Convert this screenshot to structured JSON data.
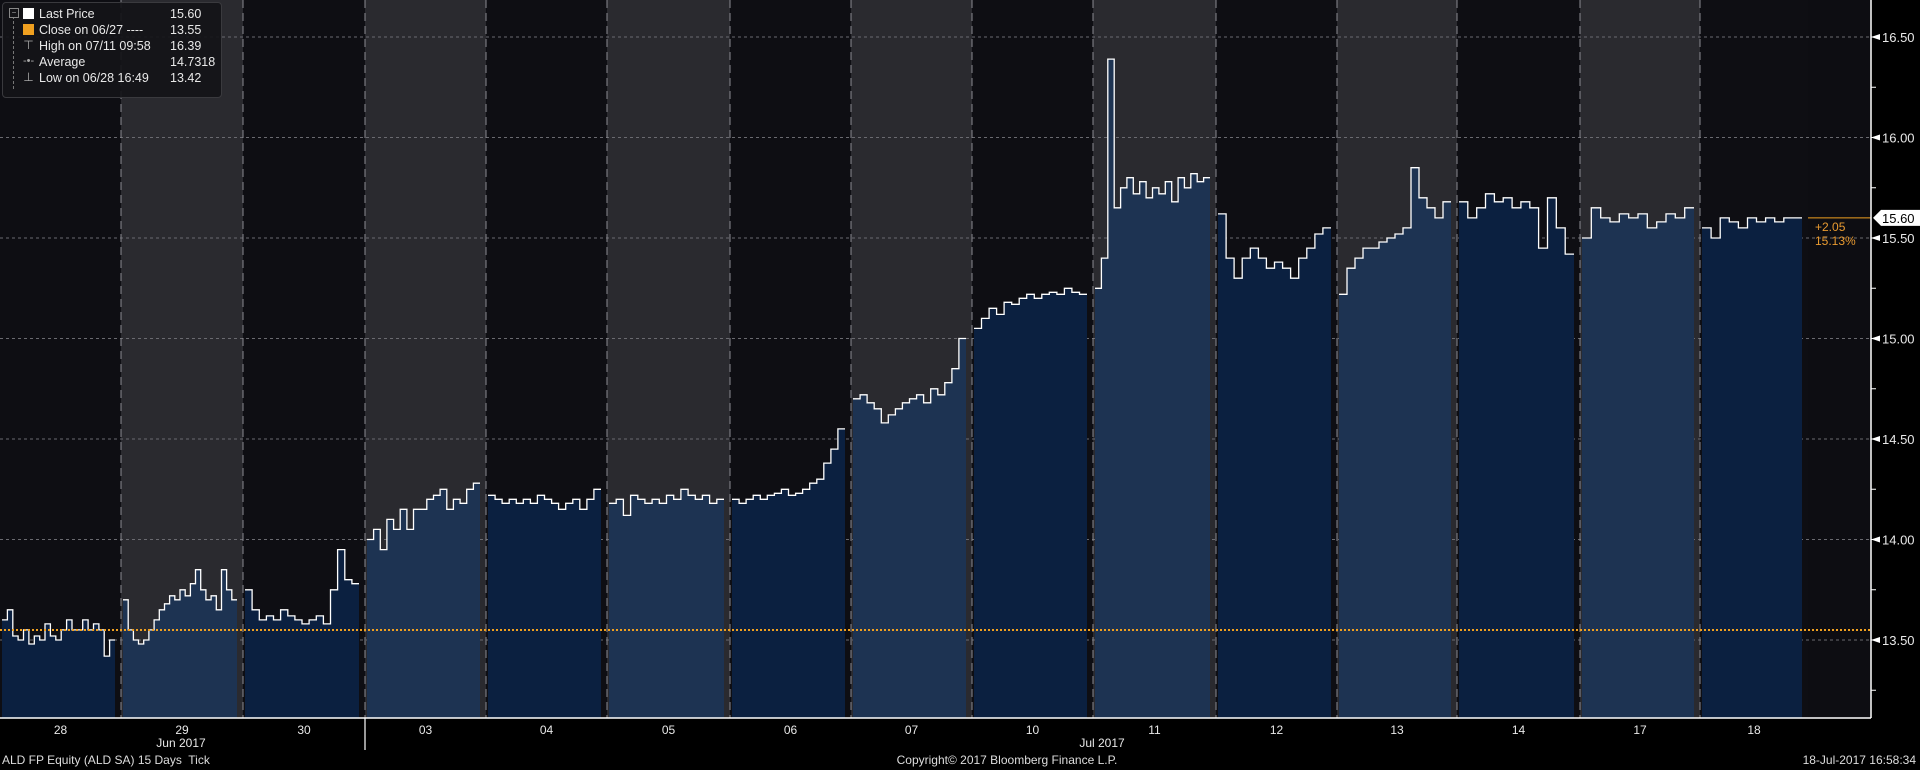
{
  "legend": {
    "items": [
      {
        "label": "Last Price",
        "value": "15.60",
        "symbol": "white-square"
      },
      {
        "label": "Close on 06/27 ----",
        "value": "13.55",
        "symbol": "orange-square"
      },
      {
        "label": "High on 07/11 09:58",
        "value": "16.39",
        "symbol": "high-marker"
      },
      {
        "label": "Average",
        "value": "14.7318",
        "symbol": "average-marker"
      },
      {
        "label": "Low on 06/28 16:49",
        "value": "13.42",
        "symbol": "low-marker"
      }
    ]
  },
  "footer": {
    "left": "ALD FP Equity (ALD SA) 15 Days  Tick",
    "center": "Copyright© 2017 Bloomberg Finance L.P.",
    "right": "18-Jul-2017 16:58:34"
  },
  "colors": {
    "line": "#ffffff",
    "close_line": "#f0a020",
    "area_light": "#1d3352",
    "area_dark": "#0b2040",
    "bg_light": "#2a2a2f",
    "bg_dark": "#0e0e13",
    "change_text": "#e89a30"
  },
  "chart_data": {
    "type": "area",
    "xlabel": "",
    "ylabel": "",
    "ylim": [
      13.2,
      16.7
    ],
    "yticks": [
      "16.50",
      "16.00",
      "15.50",
      "15.00",
      "14.50",
      "14.00",
      "13.50"
    ],
    "grid": true,
    "legend_position": "top-left",
    "months": [
      {
        "label": "Jun 2017"
      },
      {
        "label": "Jul 2017"
      }
    ],
    "last_price": 15.6,
    "last_price_label": "15.60",
    "close_reference": 13.55,
    "change": "+2.05",
    "change_pct": "15.13%",
    "days": [
      {
        "label": "28",
        "values": [
          13.6,
          13.65,
          13.52,
          13.5,
          13.55,
          13.48,
          13.52,
          13.5,
          13.58,
          13.52,
          13.5,
          13.55,
          13.6,
          13.55,
          13.55,
          13.6,
          13.55,
          13.58,
          13.55,
          13.42,
          13.5
        ]
      },
      {
        "label": "29",
        "values": [
          13.7,
          13.55,
          13.5,
          13.48,
          13.5,
          13.55,
          13.6,
          13.65,
          13.68,
          13.72,
          13.7,
          13.75,
          13.72,
          13.78,
          13.85,
          13.75,
          13.7,
          13.72,
          13.65,
          13.85,
          13.75,
          13.7
        ]
      },
      {
        "label": "30",
        "values": [
          13.75,
          13.65,
          13.6,
          13.62,
          13.6,
          13.65,
          13.62,
          13.6,
          13.58,
          13.6,
          13.62,
          13.58,
          13.75,
          13.95,
          13.8,
          13.78
        ]
      },
      {
        "label": "03",
        "values": [
          14.0,
          14.05,
          13.95,
          14.1,
          14.05,
          14.15,
          14.05,
          14.15,
          14.15,
          14.2,
          14.22,
          14.25,
          14.15,
          14.2,
          14.18,
          14.25,
          14.28
        ]
      },
      {
        "label": "04",
        "values": [
          14.22,
          14.2,
          14.18,
          14.2,
          14.18,
          14.2,
          14.18,
          14.22,
          14.2,
          14.18,
          14.15,
          14.18,
          14.2,
          14.15,
          14.2,
          14.25
        ]
      },
      {
        "label": "05",
        "values": [
          14.18,
          14.2,
          14.12,
          14.22,
          14.2,
          14.18,
          14.2,
          14.18,
          14.22,
          14.2,
          14.25,
          14.22,
          14.2,
          14.22,
          14.18,
          14.2
        ]
      },
      {
        "label": "06",
        "values": [
          14.2,
          14.18,
          14.2,
          14.22,
          14.2,
          14.22,
          14.23,
          14.25,
          14.22,
          14.23,
          14.25,
          14.28,
          14.3,
          14.38,
          14.45,
          14.55
        ]
      },
      {
        "label": "07",
        "values": [
          14.7,
          14.72,
          14.68,
          14.65,
          14.58,
          14.62,
          14.65,
          14.68,
          14.7,
          14.72,
          14.68,
          14.75,
          14.72,
          14.78,
          14.85,
          15.0
        ]
      },
      {
        "label": "10",
        "values": [
          15.05,
          15.1,
          15.15,
          15.12,
          15.18,
          15.17,
          15.2,
          15.22,
          15.2,
          15.22,
          15.23,
          15.22,
          15.25,
          15.23,
          15.22
        ]
      },
      {
        "label": "11",
        "values": [
          15.25,
          15.4,
          16.39,
          15.65,
          15.75,
          15.8,
          15.72,
          15.78,
          15.7,
          15.75,
          15.72,
          15.78,
          15.68,
          15.8,
          15.75,
          15.82,
          15.78,
          15.8
        ]
      },
      {
        "label": "12",
        "values": [
          15.62,
          15.4,
          15.3,
          15.4,
          15.45,
          15.4,
          15.35,
          15.38,
          15.35,
          15.3,
          15.4,
          15.45,
          15.52,
          15.55
        ]
      },
      {
        "label": "13",
        "values": [
          15.22,
          15.35,
          15.4,
          15.45,
          15.45,
          15.48,
          15.5,
          15.52,
          15.55,
          15.85,
          15.7,
          15.65,
          15.6,
          15.68
        ]
      },
      {
        "label": "14",
        "values": [
          15.68,
          15.6,
          15.65,
          15.72,
          15.68,
          15.7,
          15.65,
          15.68,
          15.65,
          15.45,
          15.7,
          15.55,
          15.42
        ]
      },
      {
        "label": "17",
        "values": [
          15.5,
          15.65,
          15.6,
          15.58,
          15.62,
          15.6,
          15.62,
          15.55,
          15.58,
          15.62,
          15.6,
          15.65
        ]
      },
      {
        "label": "18",
        "values": [
          15.55,
          15.5,
          15.6,
          15.58,
          15.55,
          15.6,
          15.58,
          15.6,
          15.58,
          15.6,
          15.6
        ]
      }
    ]
  }
}
